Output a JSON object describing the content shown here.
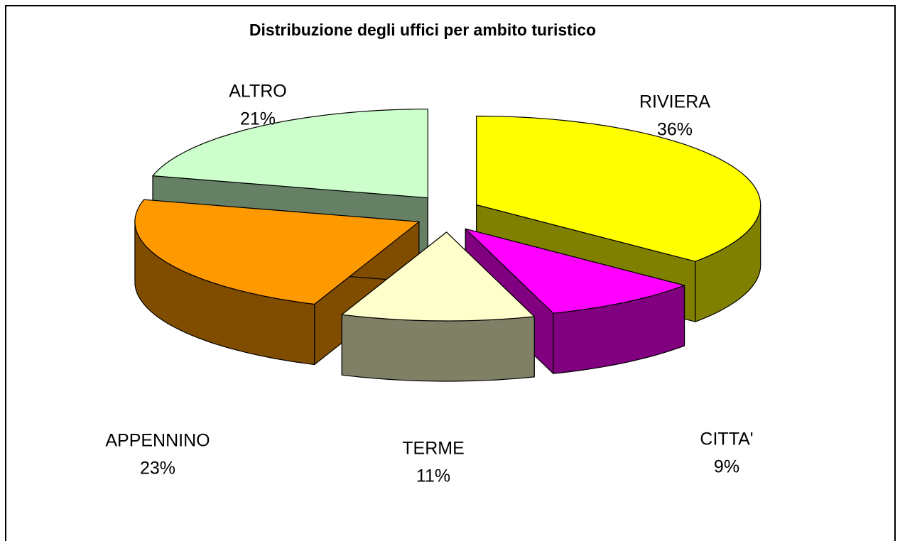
{
  "chart_data": {
    "type": "pie",
    "title": "Distribuzione degli uffici per ambito turistico",
    "categories": [
      "RIVIERA",
      "CITTA'",
      "TERME",
      "APPENNINO",
      "ALTRO"
    ],
    "values": [
      36,
      9,
      11,
      23,
      21
    ],
    "value_labels": [
      "36%",
      "9%",
      "11%",
      "23%",
      "21%"
    ],
    "colors": [
      "#ffff00",
      "#ff00ff",
      "#ffffcc",
      "#ff9900",
      "#ccffcc"
    ],
    "side_colors": [
      "#808000",
      "#800080",
      "#808066",
      "#804c00",
      "#668066"
    ],
    "exploded": true,
    "three_d": true
  }
}
